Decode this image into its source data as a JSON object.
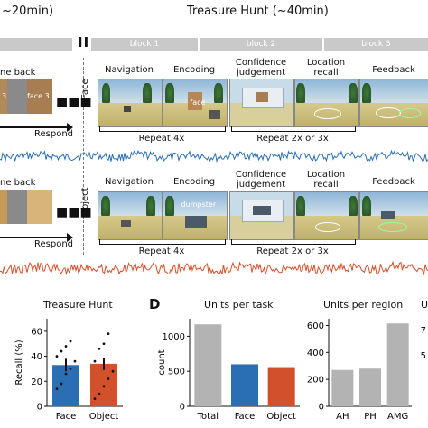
{
  "top": {
    "left_title": "~20min)",
    "right_title": "Treasure Hunt (~40min)",
    "blocks": [
      "block 1",
      "block 2",
      "block 3"
    ],
    "pause_glyph": "II"
  },
  "row_face": {
    "oneback_label": "ne back",
    "card_mid": "3",
    "card_right": "face 3",
    "respond": "Respond",
    "side_label": "Face",
    "panels": [
      "Navigation",
      "Encoding",
      "Confidence judgement",
      "Location recall",
      "Feedback"
    ],
    "encoding_sign": "face",
    "repeat_a": "Repeat 4x",
    "repeat_b": "Repeat 2x or 3x"
  },
  "row_object": {
    "oneback_label": "ne back",
    "respond": "Respond",
    "side_label": "Object",
    "panels": [
      "Navigation",
      "Encoding",
      "Confidence judgement",
      "Location recall",
      "Feedback"
    ],
    "encoding_sign": "dumpster",
    "repeat_a": "Repeat 4x",
    "repeat_b": "Repeat 2x or 3x"
  },
  "panel_D_label": "D",
  "charts": {
    "recall": {
      "title": "Treasure Hunt",
      "ylabel": "Recall (%)",
      "ylim": [
        0,
        70
      ],
      "yticks": [
        0,
        20,
        40,
        60
      ],
      "categories": [
        "Face",
        "Object"
      ],
      "values": [
        33,
        34
      ],
      "colors": [
        "#2a6eb4",
        "#d2512b"
      ]
    },
    "units_task": {
      "title": "Units per task",
      "ylabel": "count",
      "ylim": [
        0,
        1250
      ],
      "yticks": [
        0,
        500,
        1000
      ],
      "categories": [
        "Total",
        "Face",
        "Object"
      ],
      "values": [
        1170,
        600,
        560
      ],
      "colors": [
        "#b3b3b3",
        "#2a6eb4",
        "#d2512b"
      ]
    },
    "units_region": {
      "title": "Units per region",
      "ylim": [
        0,
        650
      ],
      "yticks": [
        0,
        200,
        400,
        600
      ],
      "categories": [
        "AH",
        "PH",
        "AMG"
      ],
      "values": [
        270,
        280,
        615
      ],
      "colors": [
        "#b3b3b3",
        "#b3b3b3",
        "#b3b3b3"
      ]
    },
    "partial_title": "U",
    "partial_ticks": [
      "7",
      "5"
    ]
  }
}
